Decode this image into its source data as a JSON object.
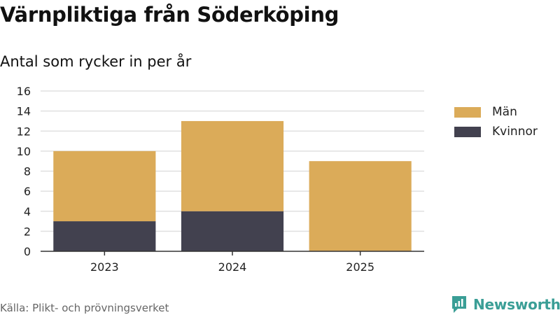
{
  "title": "Värnpliktiga från Söderköping",
  "subtitle": "Antal som rycker in per år",
  "source": "Källa: Plikt- och prövningsverket",
  "brand": {
    "name": "Newsworthy",
    "icon": "bar-chart-icon",
    "color": "#3a9e96"
  },
  "chart_data": {
    "type": "bar",
    "stacked": true,
    "categories": [
      "2023",
      "2024",
      "2025"
    ],
    "series": [
      {
        "name": "Kvinnor",
        "color": "#42414f",
        "values": [
          3,
          4,
          0
        ]
      },
      {
        "name": "Män",
        "color": "#dbab59",
        "values": [
          7,
          9,
          9
        ]
      }
    ],
    "ylim": [
      0,
      16
    ],
    "yticks": [
      0,
      2,
      4,
      6,
      8,
      10,
      12,
      14,
      16
    ],
    "xlabel": "",
    "ylabel": "",
    "grid": true,
    "legend_position": "right",
    "legend_order": [
      "Män",
      "Kvinnor"
    ]
  }
}
